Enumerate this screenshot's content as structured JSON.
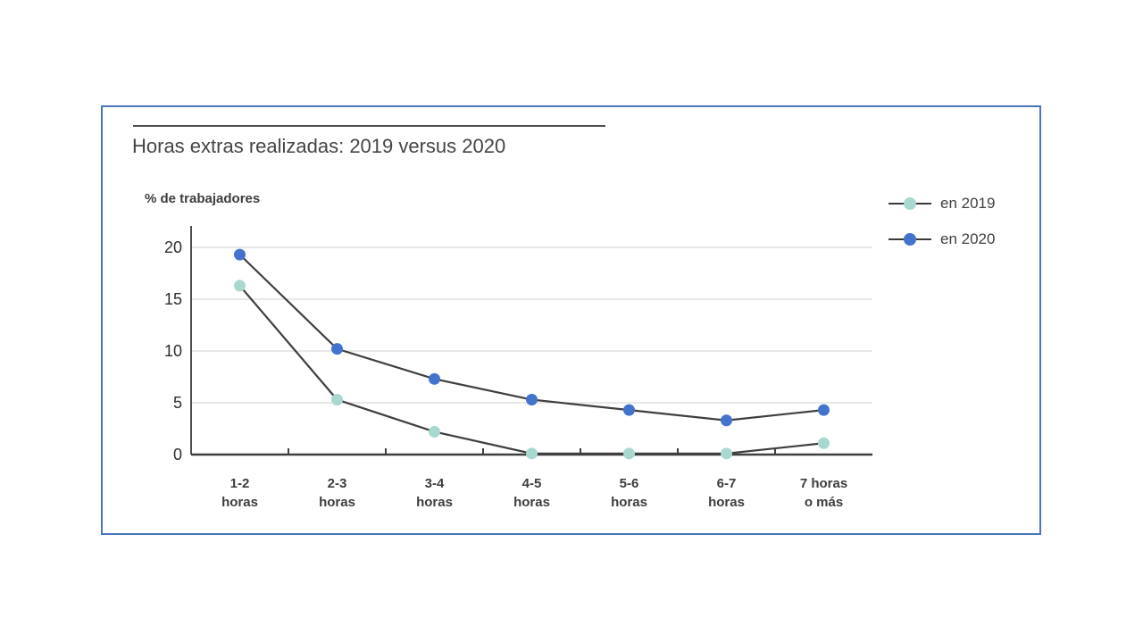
{
  "frame": {
    "border_color": "#4a77bb",
    "background": "#ffffff"
  },
  "chart_data": {
    "type": "line",
    "title": "Horas extras realizadas: 2019 versus 2020",
    "xlabel": "",
    "ylabel": "% de trabajadores",
    "categories": [
      [
        "1-2",
        "horas"
      ],
      [
        "2-3",
        "horas"
      ],
      [
        "3-4",
        "horas"
      ],
      [
        "4-5",
        "horas"
      ],
      [
        "5-6",
        "horas"
      ],
      [
        "6-7",
        "horas"
      ],
      [
        "7 horas",
        "o más"
      ]
    ],
    "series": [
      {
        "name": "en 2019",
        "color": "#a8d8d0",
        "values": [
          16.3,
          5.3,
          2.2,
          0.1,
          0.1,
          0.1,
          1.1
        ]
      },
      {
        "name": "en 2020",
        "color": "#4473cd",
        "values": [
          19.3,
          10.2,
          7.3,
          5.3,
          4.3,
          3.3,
          4.3
        ]
      }
    ],
    "ylim": [
      0,
      22
    ],
    "yticks": [
      0,
      5,
      10,
      15,
      20
    ],
    "grid": "horizontal",
    "gridline_color": "#d9d9d9",
    "axis_color": "#4f4f4f",
    "line_color": "#3f3f3f",
    "legend_position": "top-right"
  }
}
